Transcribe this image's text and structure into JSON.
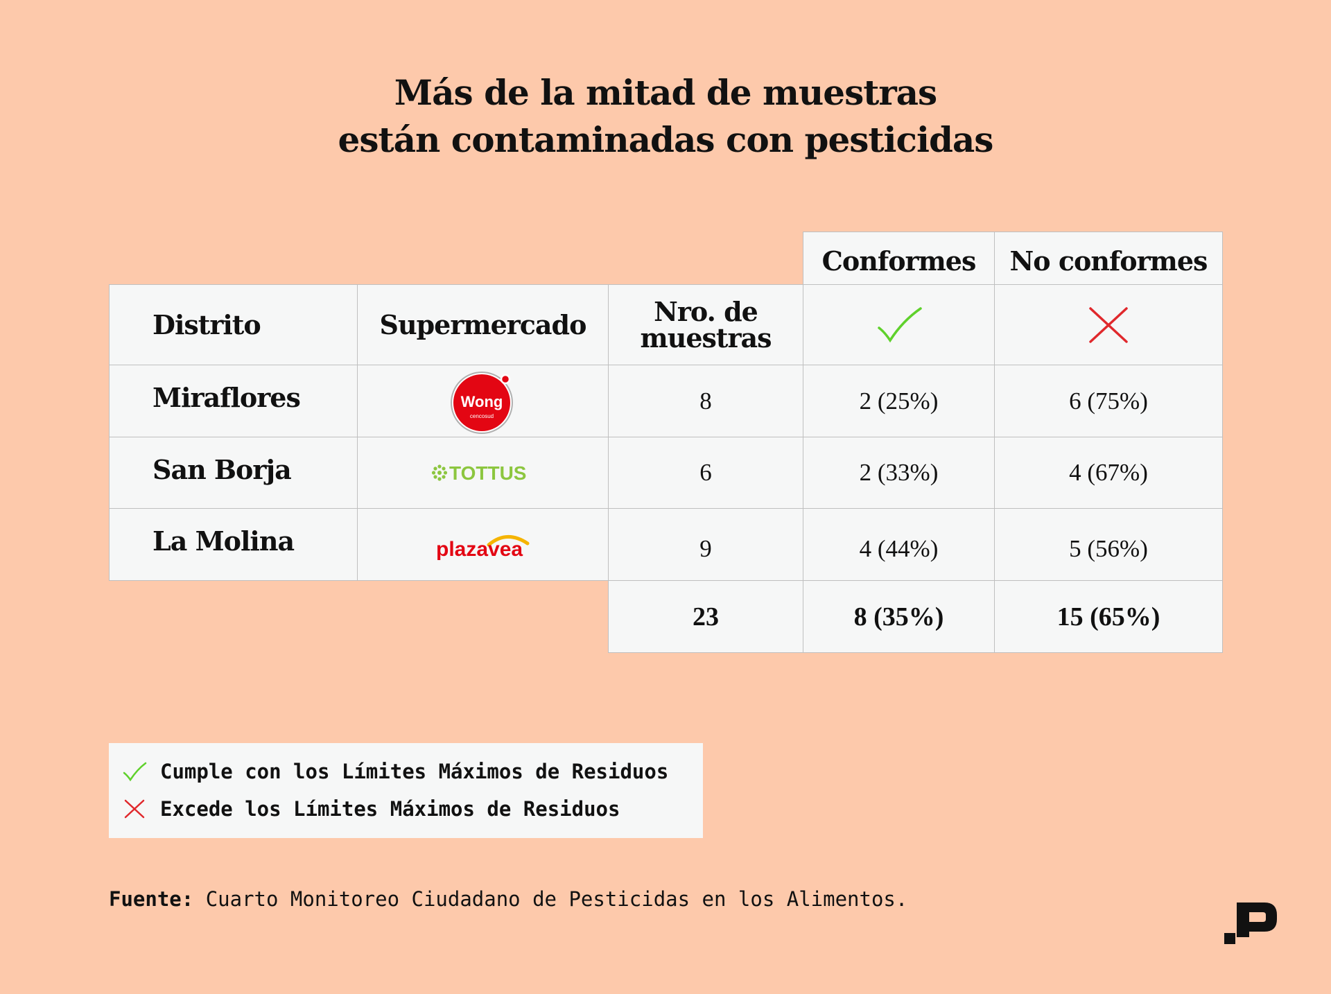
{
  "title": {
    "line1": "Más de la mitad de muestras",
    "line2": "están contaminadas con pesticidas"
  },
  "chart_data": {
    "type": "table",
    "group_headers": {
      "conformes": "Conformes",
      "no_conformes": "No conformes"
    },
    "columns": {
      "distrito": "Distrito",
      "supermercado": "Supermercado",
      "nro_line1": "Nro. de",
      "nro_line2": "muestras"
    },
    "rows": [
      {
        "distrito": "Miraflores",
        "supermercado": "Wong",
        "logo_text": "Wong",
        "logo_sub": "cencosud",
        "muestras": 8,
        "conformes": "2 (25%)",
        "no_conformes": "6 (75%)"
      },
      {
        "distrito": "San Borja",
        "supermercado": "Tottus",
        "logo_text": "TOTTUS",
        "muestras": 6,
        "conformes": "2 (33%)",
        "no_conformes": "4 (67%)"
      },
      {
        "distrito": "La Molina",
        "supermercado": "Plaza Vea",
        "logo_text": "plazavea",
        "muestras": 9,
        "conformes": "4 (44%)",
        "no_conformes": "5 (56%)"
      }
    ],
    "totals": {
      "muestras": "23",
      "conformes": "8 (35%)",
      "no_conformes": "15 (65%)"
    }
  },
  "legend": {
    "check": "Cumple con los Límites Máximos de Residuos",
    "cross": "Excede los Límites Máximos de Residuos"
  },
  "source": {
    "label": "Fuente:",
    "text": "Cuarto Monitoreo Ciudadano de Pesticidas en los Alimentos."
  },
  "icons": {
    "check": "check-icon",
    "cross": "cross-icon",
    "brand": "brand-logo-icon"
  },
  "colors": {
    "background": "#fdc9ab",
    "cell": "#f6f7f7",
    "check": "#5fd12c",
    "cross": "#e0282c",
    "wong": "#e30613",
    "tottus": "#8cc63f",
    "plazavea_text": "#e30613",
    "plazavea_arc": "#f5b400"
  }
}
